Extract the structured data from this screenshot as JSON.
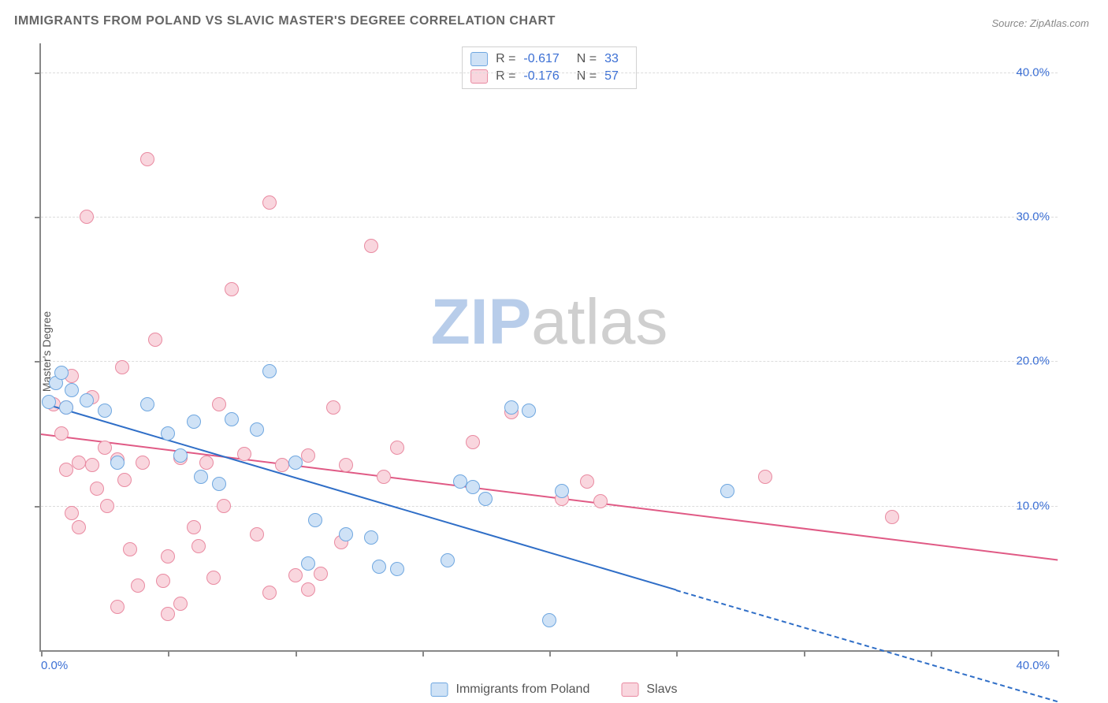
{
  "title": "IMMIGRANTS FROM POLAND VS SLAVIC MASTER'S DEGREE CORRELATION CHART",
  "source_label": "Source: ",
  "source_name": "ZipAtlas.com",
  "ylabel": "Master's Degree",
  "watermark_zip": "ZIP",
  "watermark_atlas": "atlas",
  "watermark_zip_color": "#b8cdea",
  "watermark_atlas_color": "#cfcfcf",
  "chart": {
    "type": "scatter",
    "xlim": [
      0,
      40
    ],
    "ylim": [
      0,
      42
    ],
    "x_tick_step": 5,
    "x_tick_labels": {
      "left": "0.0%",
      "right": "40.0%"
    },
    "y_grid": [
      10,
      20,
      30,
      40
    ],
    "y_tick_labels": {
      "10": "10.0%",
      "20": "20.0%",
      "30": "30.0%",
      "40": "40.0%"
    },
    "background_color": "#ffffff",
    "grid_color": "#dcdcdc",
    "axis_color": "#888888",
    "tick_label_color": "#3b6fd4",
    "marker_radius": 9,
    "marker_border_width": 1.5,
    "trend_line_width": 2,
    "series": [
      {
        "name": "Immigrants from Poland",
        "fill": "#cfe2f6",
        "stroke": "#6fa7e0",
        "trend_color": "#2f6ec7",
        "R": "-0.617",
        "N": "33",
        "trend": {
          "x1": 0.3,
          "y1": 17.0,
          "x2": 25.0,
          "y2": 4.2,
          "dash_to_x": 40.0,
          "dash_to_y": -3.5
        },
        "points": [
          [
            0.3,
            17.2
          ],
          [
            0.6,
            18.5
          ],
          [
            0.8,
            19.2
          ],
          [
            1.2,
            18.0
          ],
          [
            1.0,
            16.8
          ],
          [
            1.8,
            17.3
          ],
          [
            2.5,
            16.6
          ],
          [
            3.0,
            13.0
          ],
          [
            4.2,
            17.0
          ],
          [
            5.0,
            15.0
          ],
          [
            5.5,
            13.5
          ],
          [
            6.0,
            15.8
          ],
          [
            6.3,
            12.0
          ],
          [
            7.0,
            11.5
          ],
          [
            7.5,
            16.0
          ],
          [
            8.5,
            15.3
          ],
          [
            9.0,
            19.3
          ],
          [
            10.0,
            13.0
          ],
          [
            10.5,
            6.0
          ],
          [
            10.8,
            9.0
          ],
          [
            12.0,
            8.0
          ],
          [
            13.0,
            7.8
          ],
          [
            13.3,
            5.8
          ],
          [
            14.0,
            5.6
          ],
          [
            16.0,
            6.2
          ],
          [
            16.5,
            11.7
          ],
          [
            17.0,
            11.3
          ],
          [
            17.5,
            10.5
          ],
          [
            18.5,
            16.8
          ],
          [
            19.2,
            16.6
          ],
          [
            20.0,
            2.1
          ],
          [
            20.5,
            11.0
          ],
          [
            27.0,
            11.0
          ]
        ]
      },
      {
        "name": "Slavs",
        "fill": "#f9d6de",
        "stroke": "#e98aa1",
        "trend_color": "#e05a85",
        "R": "-0.176",
        "N": "57",
        "trend": {
          "x1": 0,
          "y1": 15.0,
          "x2": 40.0,
          "y2": 6.3
        },
        "points": [
          [
            0.5,
            17.0
          ],
          [
            0.8,
            15.0
          ],
          [
            1.0,
            16.8
          ],
          [
            1.0,
            12.5
          ],
          [
            1.2,
            9.5
          ],
          [
            1.2,
            19.0
          ],
          [
            1.5,
            13.0
          ],
          [
            1.8,
            30.0
          ],
          [
            2.0,
            12.8
          ],
          [
            2.0,
            17.5
          ],
          [
            2.5,
            14.0
          ],
          [
            2.6,
            10.0
          ],
          [
            3.0,
            13.2
          ],
          [
            3.2,
            19.6
          ],
          [
            3.5,
            7.0
          ],
          [
            3.8,
            4.5
          ],
          [
            3.0,
            3.0
          ],
          [
            4.0,
            13.0
          ],
          [
            4.2,
            34.0
          ],
          [
            4.5,
            21.5
          ],
          [
            5.0,
            6.5
          ],
          [
            5.0,
            2.5
          ],
          [
            5.5,
            3.2
          ],
          [
            5.5,
            13.3
          ],
          [
            6.0,
            8.5
          ],
          [
            6.2,
            7.2
          ],
          [
            6.5,
            13.0
          ],
          [
            7.0,
            17.0
          ],
          [
            7.5,
            25.0
          ],
          [
            8.0,
            13.6
          ],
          [
            8.5,
            8.0
          ],
          [
            9.0,
            4.0
          ],
          [
            9.0,
            31.0
          ],
          [
            9.5,
            12.8
          ],
          [
            10.0,
            5.2
          ],
          [
            10.5,
            4.2
          ],
          [
            10.5,
            13.5
          ],
          [
            11.0,
            5.3
          ],
          [
            11.5,
            16.8
          ],
          [
            12.0,
            12.8
          ],
          [
            13.0,
            28.0
          ],
          [
            13.5,
            12.0
          ],
          [
            14.0,
            14.0
          ],
          [
            17.0,
            14.4
          ],
          [
            18.5,
            16.5
          ],
          [
            20.5,
            10.5
          ],
          [
            21.5,
            11.7
          ],
          [
            22.0,
            10.3
          ],
          [
            28.5,
            12.0
          ],
          [
            33.5,
            9.2
          ],
          [
            1.5,
            8.5
          ],
          [
            2.2,
            11.2
          ],
          [
            3.3,
            11.8
          ],
          [
            4.8,
            4.8
          ],
          [
            6.8,
            5.0
          ],
          [
            7.2,
            10.0
          ],
          [
            11.8,
            7.5
          ]
        ]
      }
    ]
  },
  "legend_top": {
    "R_label": "R =",
    "N_label": "N ="
  },
  "legend_bottom": [
    {
      "swatch_fill": "#cfe2f6",
      "swatch_stroke": "#6fa7e0",
      "label": "Immigrants from Poland"
    },
    {
      "swatch_fill": "#f9d6de",
      "swatch_stroke": "#e98aa1",
      "label": "Slavs"
    }
  ]
}
